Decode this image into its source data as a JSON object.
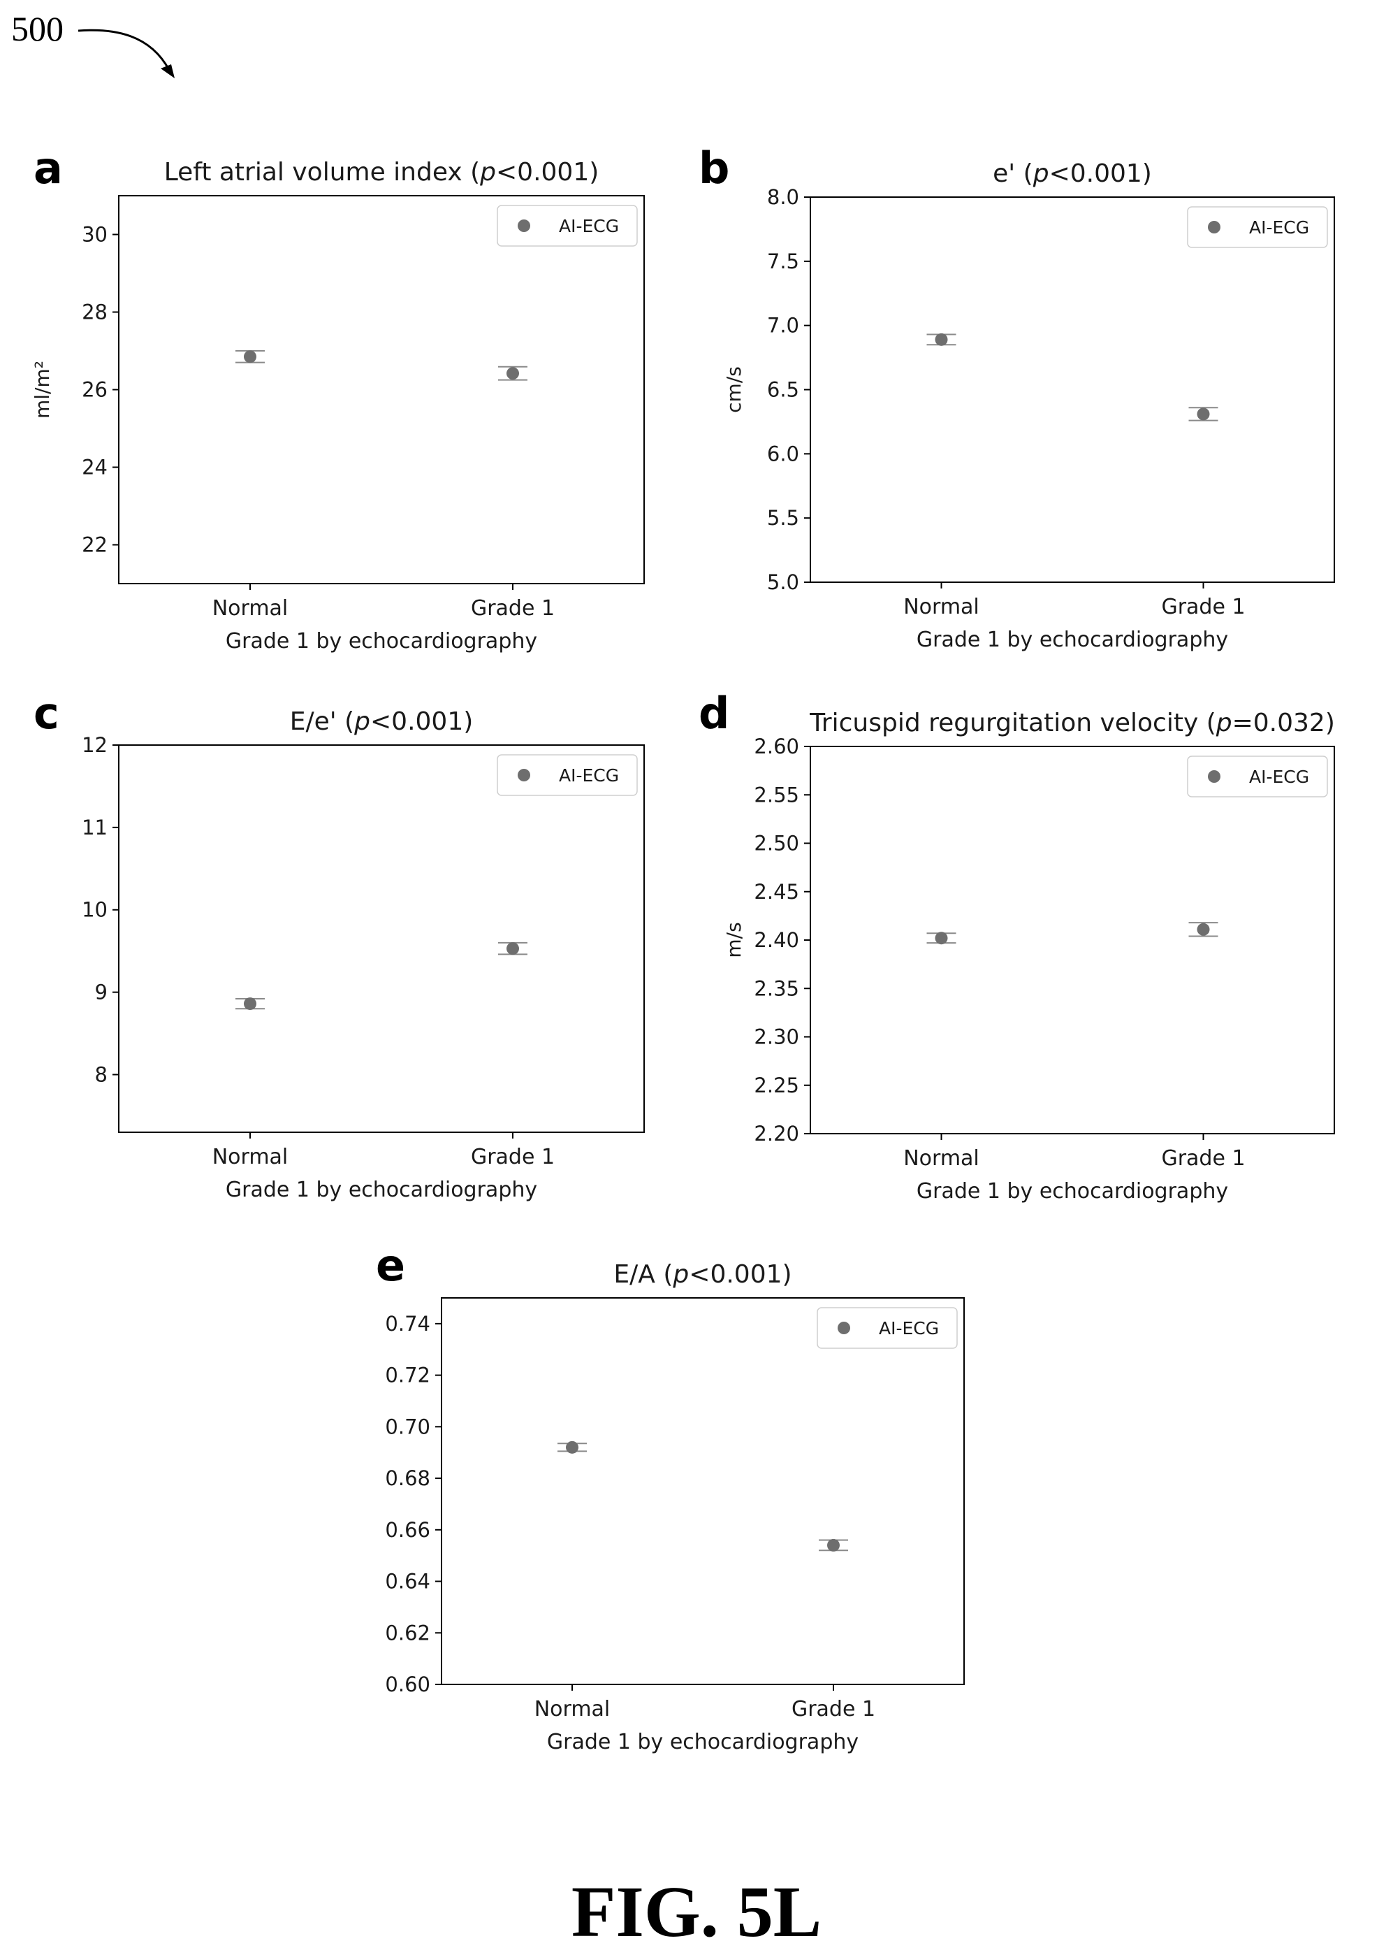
{
  "figure": {
    "ref_number": "500",
    "caption": "FIG. 5L"
  },
  "colors": {
    "marker": "#6e6e6e",
    "errorbar": "#8a8a8a",
    "axis": "#000000",
    "text": "#1a1a1a"
  },
  "chart_data": [
    {
      "panel_letter": "a",
      "type": "scatter",
      "title_main": "Left atrial volume index (",
      "title_p": "p",
      "title_rest": "<0.001)",
      "xlabel": "Grade 1 by echocardiography",
      "ylabel": "ml/m²",
      "categories": [
        "Normal",
        "Grade 1"
      ],
      "ylim": [
        21,
        31
      ],
      "yticks": [
        22,
        24,
        26,
        28,
        30
      ],
      "ytick_labels": [
        "22",
        "24",
        "26",
        "28",
        "30"
      ],
      "series": [
        {
          "name": "AI-ECG",
          "values": [
            26.85,
            26.42
          ],
          "error": [
            0.15,
            0.17
          ]
        }
      ],
      "legend": "top-right",
      "grid": false
    },
    {
      "panel_letter": "b",
      "type": "scatter",
      "title_main": "e' (",
      "title_p": "p",
      "title_rest": "<0.001)",
      "xlabel": "Grade 1 by echocardiography",
      "ylabel": "cm/s",
      "categories": [
        "Normal",
        "Grade 1"
      ],
      "ylim": [
        5.0,
        8.0
      ],
      "yticks": [
        5.0,
        5.5,
        6.0,
        6.5,
        7.0,
        7.5,
        8.0
      ],
      "ytick_labels": [
        "5.0",
        "5.5",
        "6.0",
        "6.5",
        "7.0",
        "7.5",
        "8.0"
      ],
      "series": [
        {
          "name": "AI-ECG",
          "values": [
            6.89,
            6.31
          ],
          "error": [
            0.04,
            0.05
          ]
        }
      ],
      "legend": "top-right",
      "grid": false
    },
    {
      "panel_letter": "c",
      "type": "scatter",
      "title_main": "E/e' (",
      "title_p": "p",
      "title_rest": "<0.001)",
      "xlabel": "Grade 1 by echocardiography",
      "ylabel": "",
      "categories": [
        "Normal",
        "Grade 1"
      ],
      "ylim": [
        7.3,
        12.0
      ],
      "yticks": [
        8,
        9,
        10,
        11,
        12
      ],
      "ytick_labels": [
        "8",
        "9",
        "10",
        "11",
        "12"
      ],
      "series": [
        {
          "name": "AI-ECG",
          "values": [
            8.86,
            9.53
          ],
          "error": [
            0.06,
            0.07
          ]
        }
      ],
      "legend": "top-right",
      "grid": false
    },
    {
      "panel_letter": "d",
      "type": "scatter",
      "title_main": "Tricuspid regurgitation velocity (",
      "title_p": "p",
      "title_rest": "=0.032)",
      "xlabel": "Grade 1 by echocardiography",
      "ylabel": "m/s",
      "categories": [
        "Normal",
        "Grade 1"
      ],
      "ylim": [
        2.2,
        2.6
      ],
      "yticks": [
        2.2,
        2.25,
        2.3,
        2.35,
        2.4,
        2.45,
        2.5,
        2.55,
        2.6
      ],
      "ytick_labels": [
        "2.20",
        "2.25",
        "2.30",
        "2.35",
        "2.40",
        "2.45",
        "2.50",
        "2.55",
        "2.60"
      ],
      "series": [
        {
          "name": "AI-ECG",
          "values": [
            2.402,
            2.411
          ],
          "error": [
            0.005,
            0.007
          ]
        }
      ],
      "legend": "top-right",
      "grid": false
    },
    {
      "panel_letter": "e",
      "type": "scatter",
      "title_main": "E/A (",
      "title_p": "p",
      "title_rest": "<0.001)",
      "xlabel": "Grade 1 by echocardiography",
      "ylabel": "",
      "categories": [
        "Normal",
        "Grade 1"
      ],
      "ylim": [
        0.6,
        0.75
      ],
      "yticks": [
        0.6,
        0.62,
        0.64,
        0.66,
        0.68,
        0.7,
        0.72,
        0.74
      ],
      "ytick_labels": [
        "0.60",
        "0.62",
        "0.64",
        "0.66",
        "0.68",
        "0.70",
        "0.72",
        "0.74"
      ],
      "series": [
        {
          "name": "AI-ECG",
          "values": [
            0.692,
            0.654
          ],
          "error": [
            0.0015,
            0.002
          ]
        }
      ],
      "legend": "top-right",
      "grid": false
    }
  ]
}
